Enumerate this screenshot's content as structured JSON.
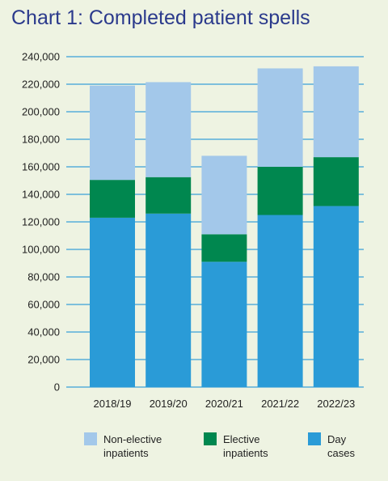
{
  "chart_data": {
    "type": "bar",
    "stacked": true,
    "title": "Chart 1: Completed patient spells",
    "xlabel": "",
    "ylabel": "",
    "ylim": [
      0,
      240000
    ],
    "yticks": [
      0,
      20000,
      40000,
      60000,
      80000,
      100000,
      120000,
      140000,
      160000,
      180000,
      200000,
      220000,
      240000
    ],
    "ytick_labels": [
      "0",
      "20,000",
      "40,000",
      "60,000",
      "80,000",
      "100,000",
      "120,000",
      "140,000",
      "160,000",
      "180,000",
      "200,000",
      "220,000",
      "240,000"
    ],
    "categories": [
      "2018/19",
      "2019/20",
      "2020/21",
      "2021/22",
      "2022/23"
    ],
    "grid": true,
    "legend_position": "bottom",
    "series": [
      {
        "name": "Day cases",
        "legend_lines": [
          "Day",
          "cases"
        ],
        "color": "#2a9bd7",
        "values": [
          123000,
          126000,
          91000,
          125000,
          131500
        ]
      },
      {
        "name": "Elective inpatients",
        "legend_lines": [
          "Elective",
          "inpatients"
        ],
        "color": "#00874f",
        "values": [
          27500,
          26500,
          20000,
          35000,
          35500
        ]
      },
      {
        "name": "Non-elective inpatients",
        "legend_lines": [
          "Non-elective",
          "inpatients"
        ],
        "color": "#a3c8ea",
        "values": [
          68500,
          69000,
          57000,
          71500,
          66000
        ]
      }
    ],
    "legend_order": [
      2,
      1,
      0
    ]
  }
}
